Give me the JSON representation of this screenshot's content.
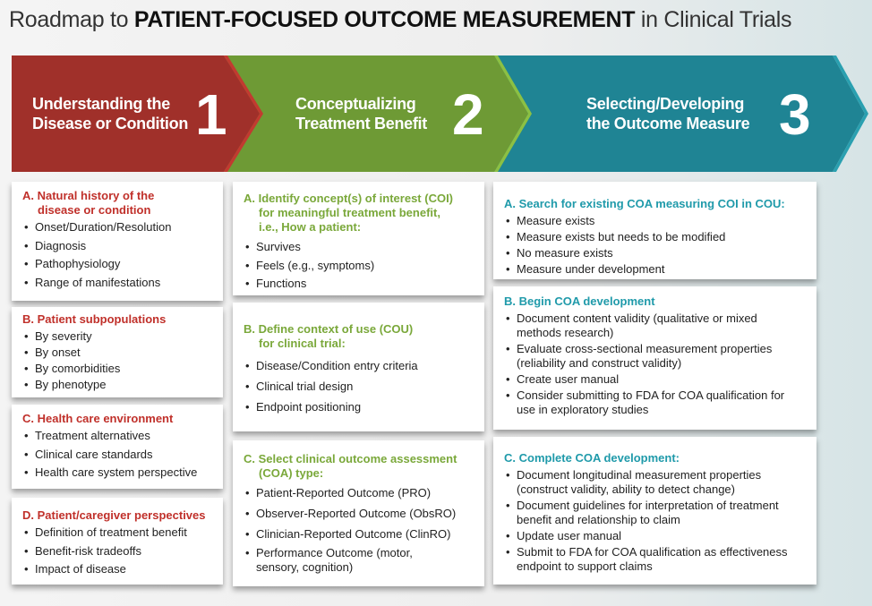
{
  "title": {
    "prefix": "Roadmap to ",
    "bold": "PATIENT-FOCUSED OUTCOME MEASUREMENT",
    "suffix": " in Clinical Trials"
  },
  "colors": {
    "step1": "#a0302a",
    "step2": "#6e9a35",
    "step3": "#1f8494"
  },
  "steps": [
    {
      "line1": "Understanding the",
      "line2": "Disease or Condition",
      "number": "1"
    },
    {
      "line1": "Conceptualizing",
      "line2": "Treatment Benefit",
      "number": "2"
    },
    {
      "line1": "Selecting/Developing",
      "line2": "the Outcome Measure",
      "number": "3"
    }
  ],
  "col1": [
    {
      "heading1": "A. Natural history of the",
      "heading2": "disease or condition",
      "items": [
        "Onset/Duration/Resolution",
        "Diagnosis",
        "Pathophysiology",
        "Range of manifestations"
      ]
    },
    {
      "heading1": "B. Patient subpopulations",
      "items": [
        "By severity",
        "By onset",
        "By comorbidities",
        "By phenotype"
      ]
    },
    {
      "heading1": "C. Health care environment",
      "items": [
        "Treatment alternatives",
        "Clinical care standards",
        "Health care system perspective"
      ]
    },
    {
      "heading1": "D. Patient/caregiver perspectives",
      "items": [
        "Definition of treatment benefit",
        "Benefit-risk tradeoffs",
        "Impact of disease"
      ]
    }
  ],
  "col2": [
    {
      "heading1": "A.  Identify concept(s) of interest (COI)",
      "heading2": "for meaningful treatment benefit,",
      "heading3": "i.e., How a patient:",
      "items": [
        "Survives",
        "Feels (e.g., symptoms)",
        "Functions"
      ]
    },
    {
      "heading1": "B. Define context of use (COU)",
      "heading2": "for clinical trial:",
      "items": [
        "Disease/Condition entry criteria",
        "Clinical trial design",
        "Endpoint positioning"
      ]
    },
    {
      "heading1": "C.  Select clinical outcome assessment",
      "heading2": "(COA) type:",
      "items": [
        "Patient-Reported Outcome (PRO)",
        "Observer-Reported Outcome (ObsRO)",
        "Clinician-Reported Outcome (ClinRO)",
        "Performance Outcome (motor, sensory, cognition)"
      ]
    }
  ],
  "col3": [
    {
      "heading1": "A. Search for existing COA measuring COI in COU:",
      "items": [
        "Measure exists",
        "Measure exists but needs to be modified",
        "No measure exists",
        "Measure under development"
      ]
    },
    {
      "heading1": "B. Begin COA development",
      "items": [
        "Document content validity (qualitative or mixed methods research)",
        "Evaluate cross-sectional measurement properties (reliability and construct validity)",
        "Create user manual",
        "Consider submitting to FDA for COA qualification for use in exploratory studies"
      ]
    },
    {
      "heading1": "C. Complete COA development:",
      "items": [
        "Document longitudinal measurement properties (construct validity, ability to detect change)",
        "Document guidelines for interpretation of treatment benefit and relationship to claim",
        "Update user manual",
        "Submit to FDA for COA qualification as effectiveness endpoint to support claims"
      ]
    }
  ]
}
